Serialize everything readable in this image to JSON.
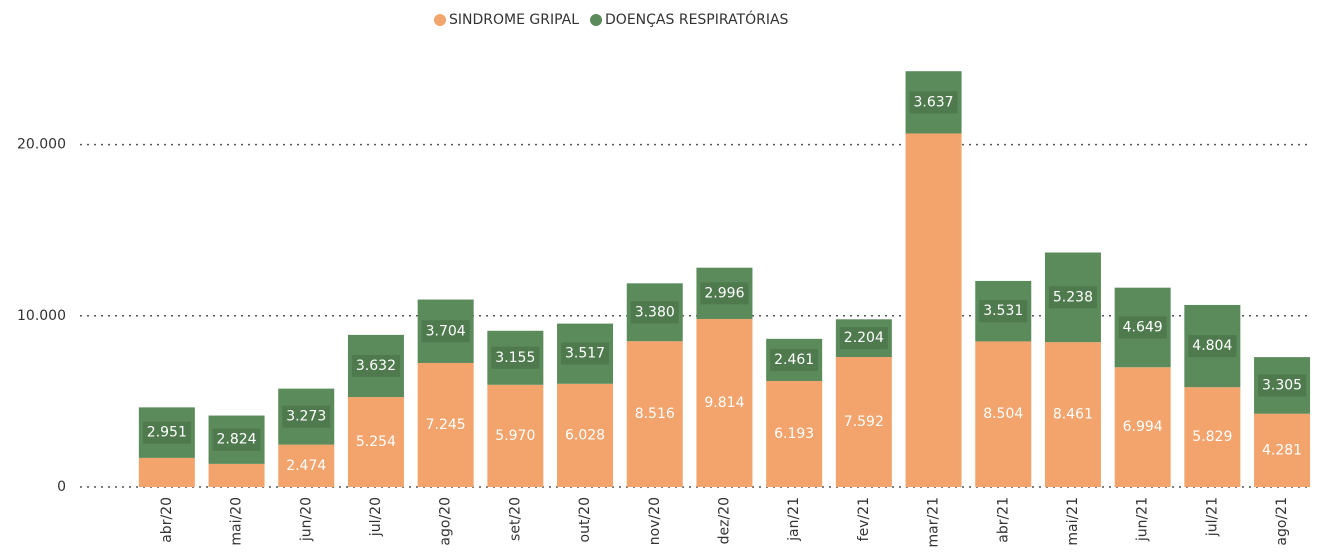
{
  "chart_data": {
    "type": "stacked-bar",
    "categories": [
      "abr/20",
      "mai/20",
      "jun/20",
      "jul/20",
      "ago/20",
      "set/20",
      "out/20",
      "nov/20",
      "dez/20",
      "jan/21",
      "fev/21",
      "mar/21",
      "abr/21",
      "mai/21",
      "jun/21",
      "jul/21",
      "ago/21"
    ],
    "series": [
      {
        "name": "SINDROME GRIPAL",
        "color": "#f2a46c",
        "values": [
          1700,
          1350,
          2474,
          5254,
          7245,
          5970,
          6028,
          8516,
          9814,
          6193,
          7592,
          20650,
          8504,
          8461,
          6994,
          5829,
          4281
        ],
        "value_labels": [
          null,
          null,
          "2.474",
          "5.254",
          "7.245",
          "5.970",
          "6.028",
          "8.516",
          "9.814",
          "6.193",
          "7.592",
          null,
          "8.504",
          "8.461",
          "6.994",
          "5.829",
          "4.281"
        ]
      },
      {
        "name": "DOENÇAS RESPIRATÓRIAS",
        "color": "#5b8a5b",
        "values": [
          2951,
          2824,
          3273,
          3632,
          3704,
          3155,
          3517,
          3380,
          2996,
          2461,
          2204,
          3637,
          3531,
          5238,
          4649,
          4804,
          3305
        ],
        "value_labels": [
          "2.951",
          "2.824",
          "3.273",
          "3.632",
          "3.704",
          "3.155",
          "3.517",
          "3.380",
          "2.996",
          "2.461",
          "2.204",
          "3.637",
          "3.531",
          "5.238",
          "4.649",
          "4.804",
          "3.305"
        ]
      }
    ],
    "ylim": [
      0,
      25000
    ],
    "yticks": [
      0,
      {
        "value": 10000,
        "label": "10.000"
      },
      {
        "value": 20000,
        "label": "20.000"
      }
    ],
    "grid": true,
    "legend": "top"
  }
}
